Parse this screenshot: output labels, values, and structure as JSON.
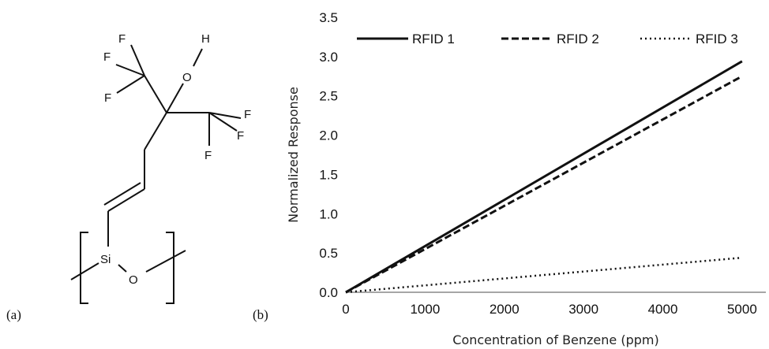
{
  "panel_labels": {
    "a": "(a)",
    "b": "(b)"
  },
  "molecule": {
    "atoms": {
      "f1": "F",
      "f2": "F",
      "f3": "F",
      "o_top": "O",
      "h": "H",
      "f4": "F",
      "f5": "F",
      "f6": "F",
      "si": "Si",
      "o_chain": "O"
    }
  },
  "chart_data": {
    "type": "line",
    "xlabel": "Concentration of Benzene (ppm)",
    "ylabel": "Normalized Response",
    "xlim": [
      0,
      5300
    ],
    "ylim": [
      0,
      3.5
    ],
    "x_ticks": [
      "0",
      "1000",
      "2000",
      "3000",
      "4000",
      "5000"
    ],
    "y_ticks": [
      "0.0",
      "0.5",
      "1.0",
      "1.5",
      "2.0",
      "2.5",
      "3.0",
      "3.5"
    ],
    "grid": false,
    "legend_position": "top",
    "series": [
      {
        "name": "RFID 1",
        "style": "solid",
        "x": [
          0,
          5000
        ],
        "y": [
          0,
          2.94
        ]
      },
      {
        "name": "RFID 2",
        "style": "dashed",
        "x": [
          0,
          5000
        ],
        "y": [
          0,
          2.75
        ]
      },
      {
        "name": "RFID 3",
        "style": "dotted",
        "x": [
          0,
          5000
        ],
        "y": [
          0,
          0.44
        ]
      }
    ]
  }
}
